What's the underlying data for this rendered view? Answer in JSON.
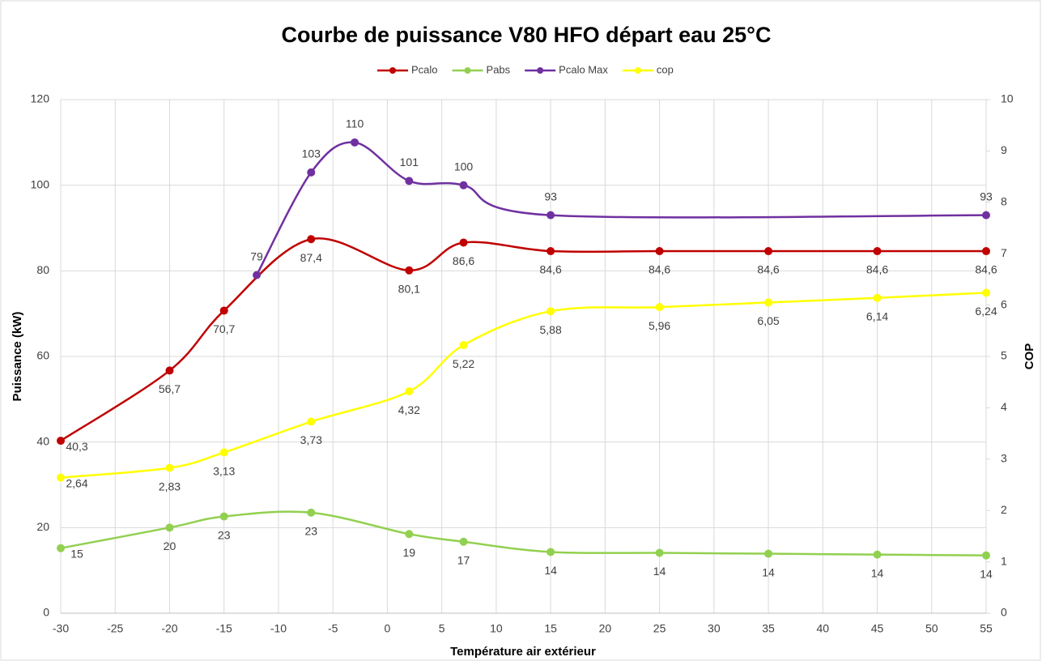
{
  "chart_data": {
    "type": "line",
    "title": "Courbe de puissance V80 HFO départ eau 25°C",
    "xlabel": "Température air extérieur",
    "ylabel": "Puissance (kW)",
    "y2label": "COP",
    "xlim": [
      -30,
      55
    ],
    "xticks": [
      -30,
      -25,
      -20,
      -15,
      -10,
      -5,
      0,
      5,
      10,
      15,
      20,
      25,
      30,
      35,
      40,
      45,
      50,
      55
    ],
    "ylim": [
      0,
      120
    ],
    "yticks": [
      0,
      20,
      40,
      60,
      80,
      100,
      120
    ],
    "y2lim": [
      0,
      10
    ],
    "y2ticks": [
      0,
      1,
      2,
      3,
      4,
      5,
      6,
      7,
      8,
      9,
      10
    ],
    "grid": true,
    "legend": "top",
    "series": [
      {
        "name": "Pcalo",
        "color": "#c00000",
        "x": [
          -30,
          -20,
          -15,
          -7,
          2,
          7,
          15,
          25,
          35,
          45,
          55
        ],
        "values": [
          40.3,
          56.7,
          70.7,
          87.4,
          80.1,
          86.6,
          84.6,
          84.6,
          84.6,
          84.6,
          84.6
        ],
        "value_labels": [
          "40,3",
          "56,7",
          "70,7",
          "87,4",
          "80,1",
          "86,6",
          "84,6",
          "84,6",
          "84,6",
          "84,6",
          "84,6"
        ]
      },
      {
        "name": "Pabs",
        "color": "#92d050",
        "x": [
          -30,
          -20,
          -15,
          -7,
          2,
          7,
          15,
          25,
          35,
          45,
          55
        ],
        "values": [
          15.2,
          20,
          22.6,
          23.5,
          18.5,
          16.7,
          14.3,
          14.1,
          13.9,
          13.7,
          13.5
        ],
        "value_labels": [
          "15",
          "20",
          "23",
          "23",
          "19",
          "17",
          "14",
          "14",
          "14",
          "14",
          "14"
        ]
      },
      {
        "name": "Pcalo Max",
        "color": "#7030a0",
        "x": [
          -12,
          -7,
          -3,
          2,
          7,
          15,
          55
        ],
        "values": [
          79,
          103,
          110,
          101,
          100,
          93,
          93
        ]
      },
      {
        "name": "cop",
        "color": "#ffff00",
        "axis": "y2",
        "x": [
          -30,
          -20,
          -15,
          -7,
          2,
          7,
          15,
          25,
          35,
          45,
          55
        ],
        "values": [
          2.64,
          2.83,
          3.13,
          3.73,
          4.32,
          5.22,
          5.88,
          5.96,
          6.05,
          6.14,
          6.24
        ],
        "value_labels": [
          "2,64",
          "2,83",
          "3,13",
          "3,73",
          "4,32",
          "5,22",
          "5,88",
          "5,96",
          "6,05",
          "6,14",
          "6,24"
        ]
      }
    ]
  }
}
